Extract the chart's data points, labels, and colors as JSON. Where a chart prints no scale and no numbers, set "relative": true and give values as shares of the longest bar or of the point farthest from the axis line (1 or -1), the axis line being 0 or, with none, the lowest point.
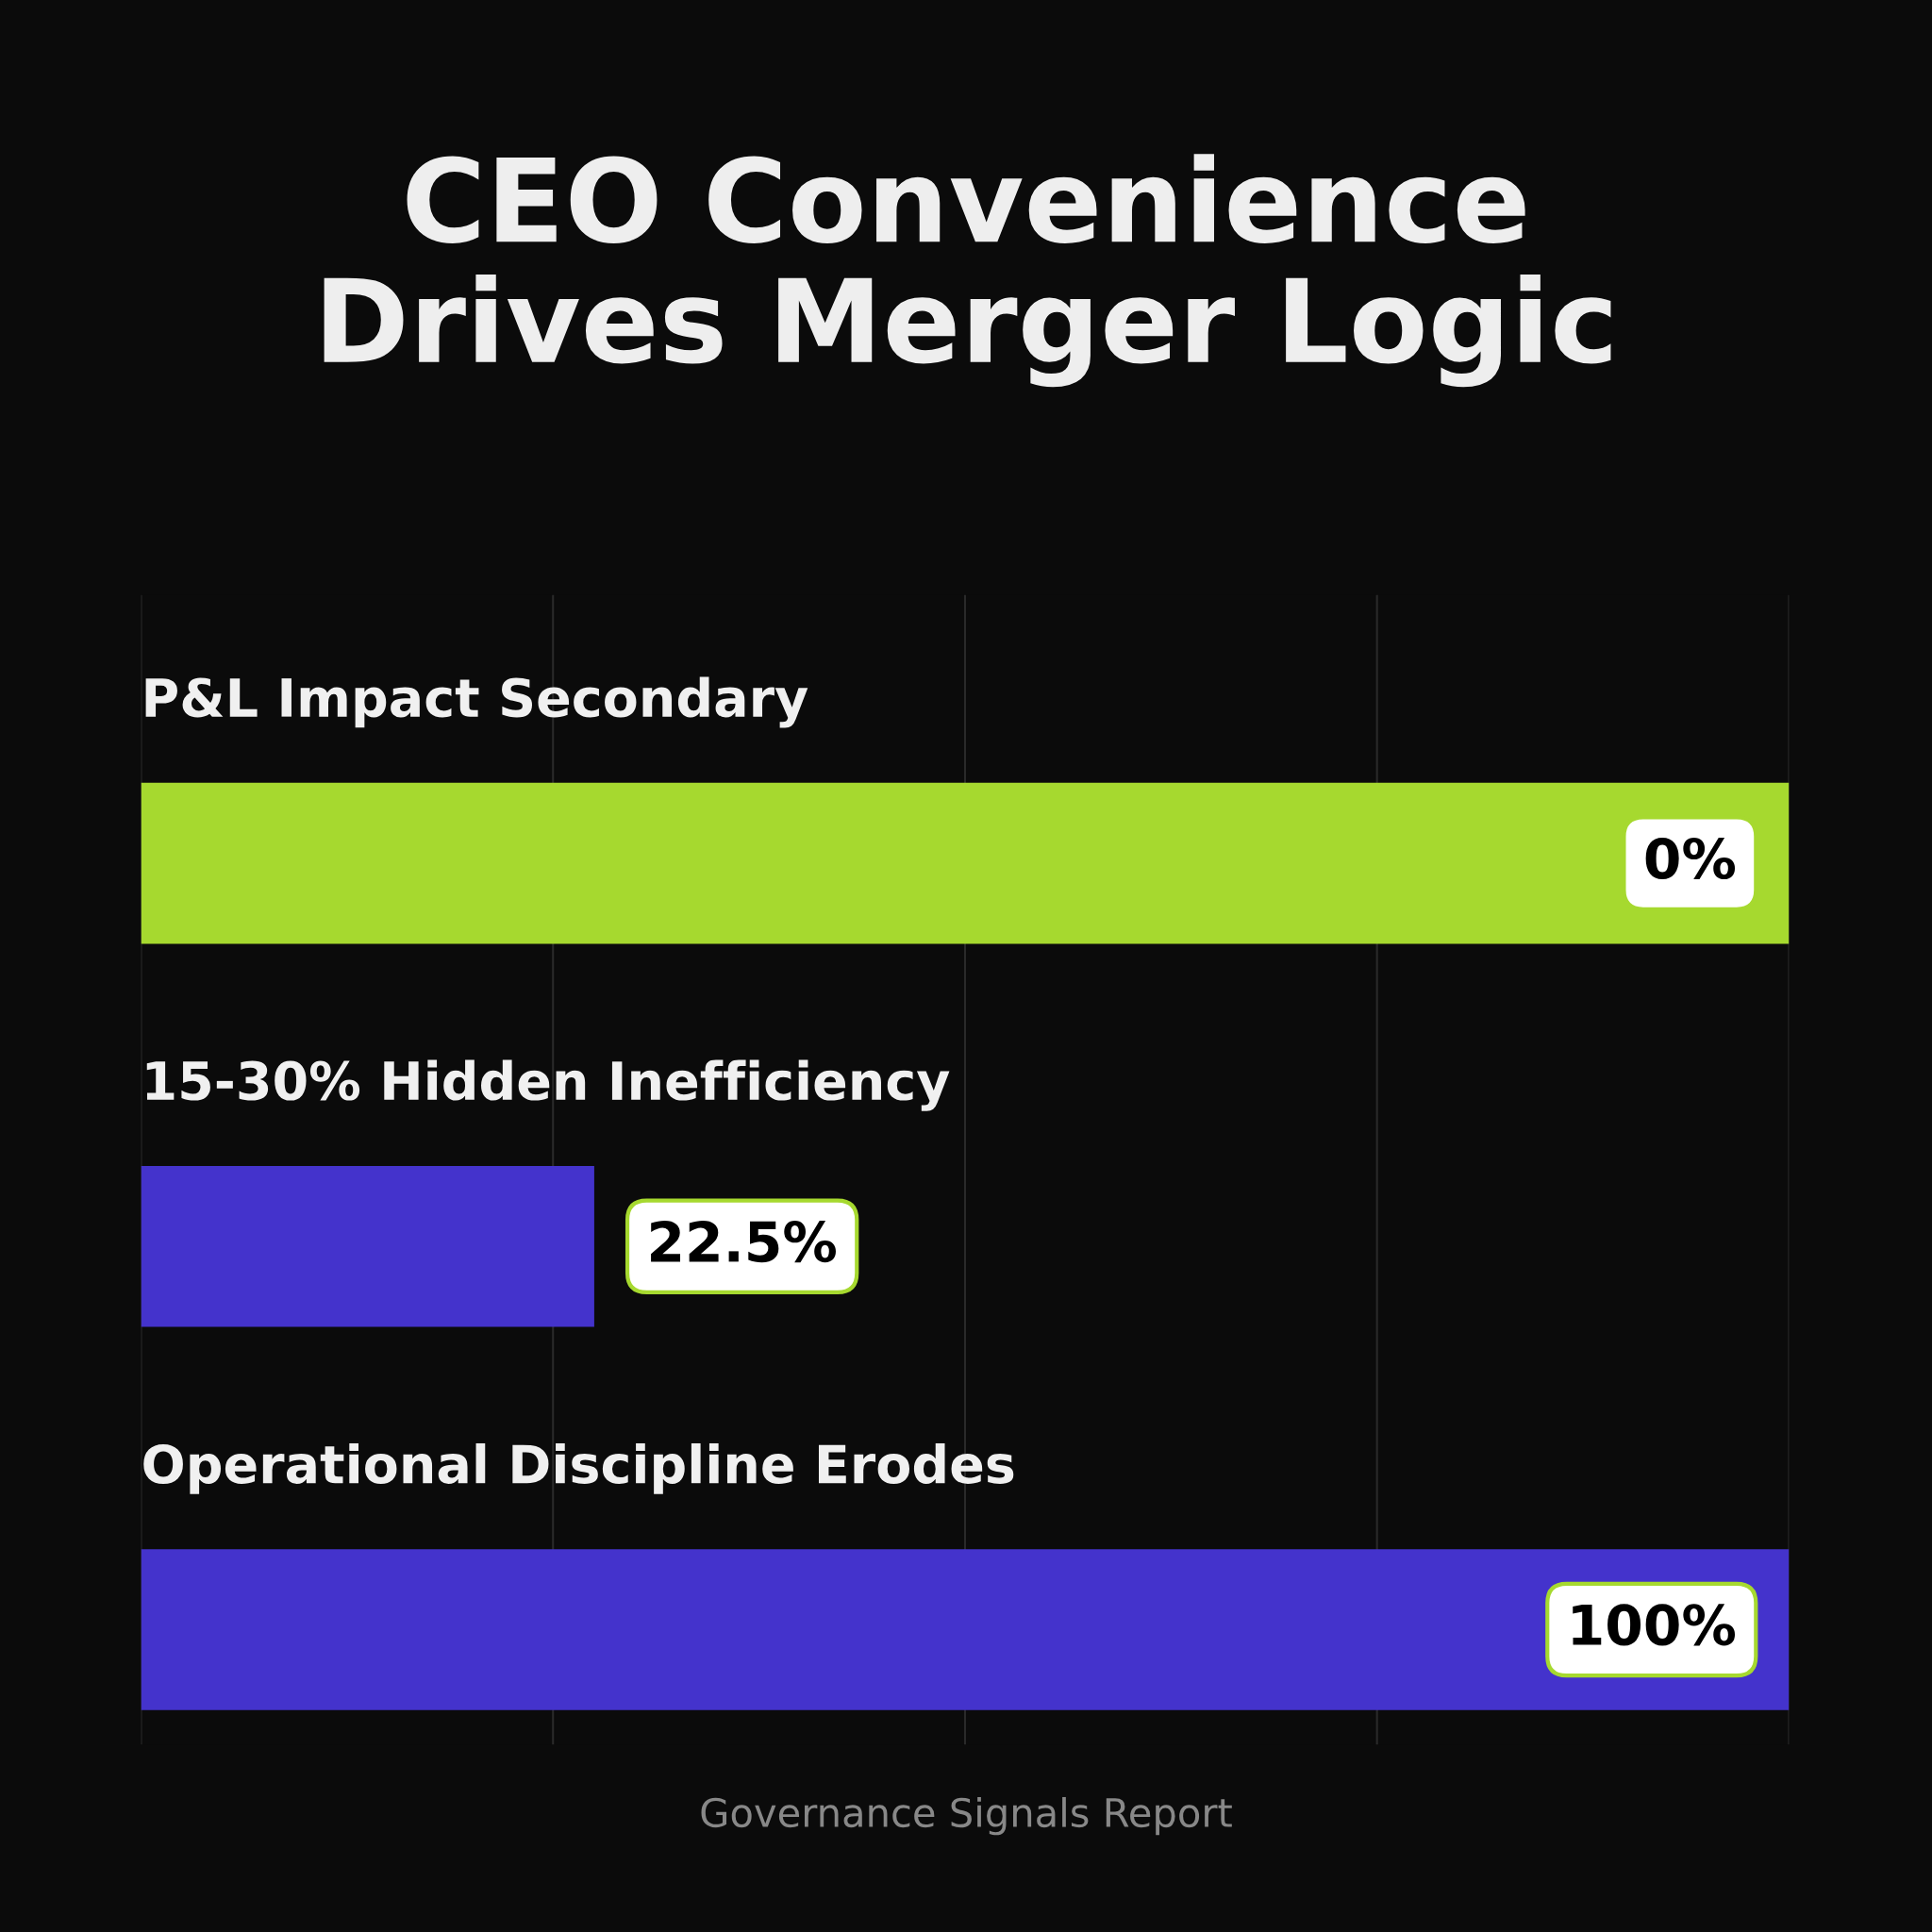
{
  "chart_data": {
    "type": "bar",
    "orientation": "horizontal",
    "relative": true,
    "title": "CEO Convenience\nDrives Merger Logic",
    "categories": [
      "P&L Impact Secondary",
      "15-30% Hidden Inefficiency",
      "Operational Discipline Erodes"
    ],
    "values": [
      1,
      0.275,
      1
    ],
    "colors": [
      "#a6d92f",
      "#4433cc",
      "#4433cc"
    ],
    "grid": "x",
    "annotations": [
      "0%",
      "22.5%",
      "100%",
      "Governance Signals Report"
    ]
  }
}
